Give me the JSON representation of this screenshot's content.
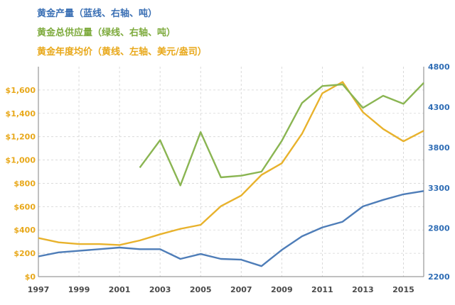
{
  "chart_data": {
    "type": "line",
    "legend": [
      {
        "key": "production",
        "text": "黄金产量（蓝线、右轴、吨）",
        "color": "#3A6FB4"
      },
      {
        "key": "supply",
        "text": "黄金总供应量（绿线、右轴、吨）",
        "color": "#7DAA3C"
      },
      {
        "key": "price",
        "text": "黄金年度均价（黄线、左轴、美元/盎司）",
        "color": "#E8A81A"
      }
    ],
    "x": [
      1997,
      1998,
      1999,
      2000,
      2001,
      2002,
      2003,
      2004,
      2005,
      2006,
      2007,
      2008,
      2009,
      2010,
      2011,
      2012,
      2013,
      2014,
      2015,
      2016
    ],
    "x_ticks": [
      1997,
      1999,
      2001,
      2003,
      2005,
      2007,
      2009,
      2011,
      2013,
      2015
    ],
    "y_left": {
      "range": [
        0,
        1800
      ],
      "ticks": [
        0,
        200,
        400,
        600,
        800,
        1000,
        1200,
        1400,
        1600
      ],
      "tick_labels": [
        "$0",
        "$200",
        "$400",
        "$600",
        "$800",
        "$1,000",
        "$1,200",
        "$1,400",
        "$1,600"
      ]
    },
    "y_right": {
      "range": [
        2200,
        4800
      ],
      "ticks": [
        2200,
        2800,
        3300,
        3800,
        4300,
        4800
      ],
      "tick_labels": [
        "2200",
        "2800",
        "3300",
        "3800",
        "4300",
        "4800"
      ]
    },
    "series": [
      {
        "key": "price",
        "axis": "left",
        "color": "#E8B22C",
        "values": [
          331,
          294,
          279,
          279,
          271,
          310,
          363,
          410,
          444,
          604,
          695,
          872,
          972,
          1225,
          1572,
          1669,
          1411,
          1266,
          1160,
          1251
        ]
      },
      {
        "key": "production",
        "axis": "right",
        "color": "#4E7DB8",
        "values": [
          2450,
          2500,
          2520,
          2540,
          2560,
          2540,
          2540,
          2420,
          2480,
          2420,
          2410,
          2330,
          2530,
          2700,
          2810,
          2880,
          3070,
          3150,
          3220,
          3260
        ]
      },
      {
        "key": "supply",
        "axis": "right",
        "color": "#8AB552",
        "values": [
          null,
          null,
          null,
          null,
          null,
          3550,
          3890,
          3330,
          3990,
          3430,
          3450,
          3500,
          3880,
          4350,
          4560,
          4580,
          4290,
          4440,
          4340,
          4600
        ]
      }
    ]
  }
}
